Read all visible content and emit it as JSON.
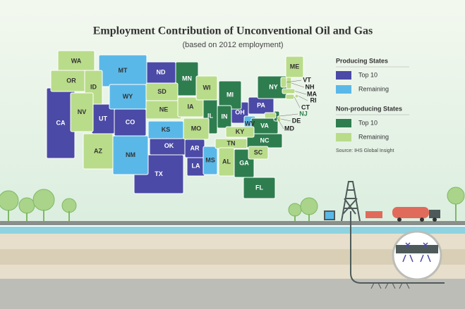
{
  "title": "Employment Contribution of Unconventional Oil and Gas",
  "subtitle": "(based on 2012 employment)",
  "legend": {
    "groups": [
      {
        "title": "Producing States",
        "items": [
          {
            "label": "Top 10",
            "color": "#4b4aa6",
            "states": [
              "CA",
              "UT",
              "CO",
              "ND",
              "OK",
              "TX",
              "LA",
              "AR",
              "OH",
              "PA"
            ]
          },
          {
            "label": "Remaining",
            "color": "#5ab8e8",
            "states": [
              "MT",
              "WY",
              "KS",
              "NM",
              "MS",
              "WV"
            ]
          }
        ]
      },
      {
        "title": "Non-producing States",
        "items": [
          {
            "label": "Top 10",
            "color": "#2e7d4f",
            "states": [
              "MN",
              "MI",
              "IL",
              "IN",
              "NY",
              "VA",
              "NC",
              "GA",
              "FL",
              "NJ"
            ]
          },
          {
            "label": "Remaining",
            "color": "#b9dc8a",
            "states": [
              "WA",
              "OR",
              "ID",
              "NV",
              "AZ",
              "SD",
              "NE",
              "IA",
              "MO",
              "WI",
              "KY",
              "TN",
              "AL",
              "SC",
              "ME",
              "VT",
              "NH",
              "MA",
              "RI",
              "CT",
              "DE",
              "MD"
            ]
          }
        ]
      }
    ]
  },
  "source": "Source: IHS Global Insight"
}
